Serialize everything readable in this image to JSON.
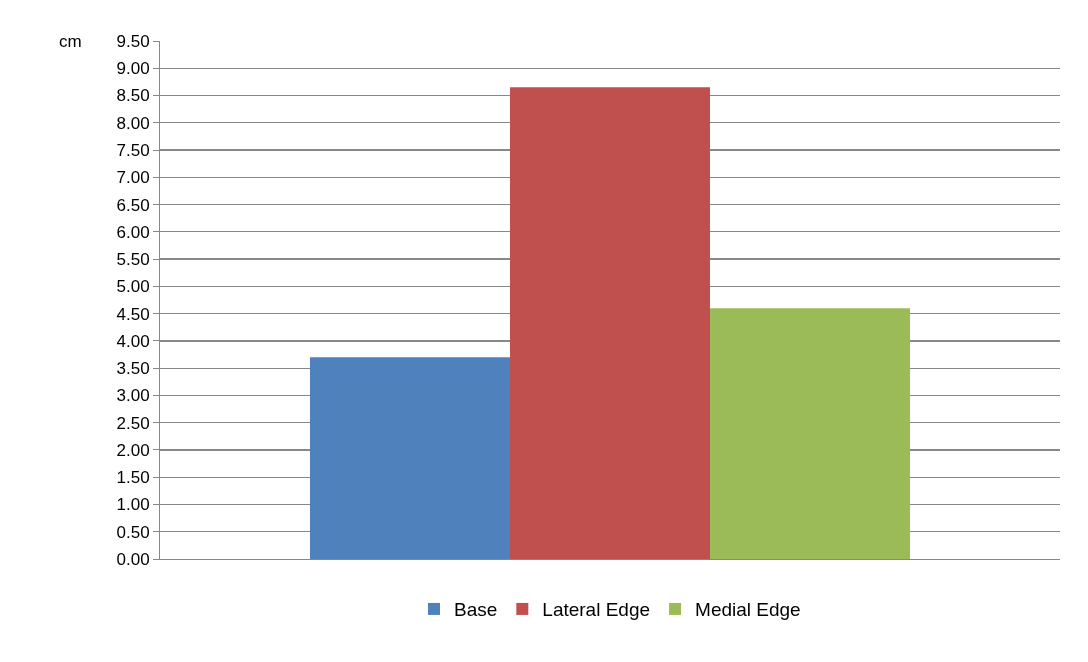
{
  "chart_data": {
    "type": "bar",
    "ylabel": "cm",
    "categories": [
      null
    ],
    "series": [
      {
        "name": "Base",
        "color": "#4f81bd",
        "values": [
          3.7
        ]
      },
      {
        "name": "Lateral Edge",
        "color": "#c0504d",
        "values": [
          8.65
        ]
      },
      {
        "name": "Medial Edge",
        "color": "#9bbb59",
        "values": [
          4.6
        ]
      }
    ],
    "ylim": [
      0,
      9.5
    ],
    "yticks": [
      {
        "value": 0,
        "label": "0.00"
      },
      {
        "value": 0.5,
        "label": "0.50"
      },
      {
        "value": 1,
        "label": "1.00"
      },
      {
        "value": 1.5,
        "label": "1.50"
      },
      {
        "value": 2,
        "label": "2.00"
      },
      {
        "value": 2.5,
        "label": "2.50"
      },
      {
        "value": 3,
        "label": "3.00"
      },
      {
        "value": 3.5,
        "label": "3.50"
      },
      {
        "value": 4,
        "label": "4.00"
      },
      {
        "value": 4.5,
        "label": "4.50"
      },
      {
        "value": 5,
        "label": "5.00"
      },
      {
        "value": 5.5,
        "label": "5.50"
      },
      {
        "value": 6,
        "label": "6.00"
      },
      {
        "value": 6.5,
        "label": "6.50"
      },
      {
        "value": 7,
        "label": "7.00"
      },
      {
        "value": 7.5,
        "label": "7.50"
      },
      {
        "value": 8,
        "label": "8.00"
      },
      {
        "value": 8.5,
        "label": "8.50"
      },
      {
        "value": 9,
        "label": "9.00"
      },
      {
        "value": 9.5,
        "label": "9.50"
      }
    ],
    "grid": "y",
    "legend": "bottom"
  }
}
